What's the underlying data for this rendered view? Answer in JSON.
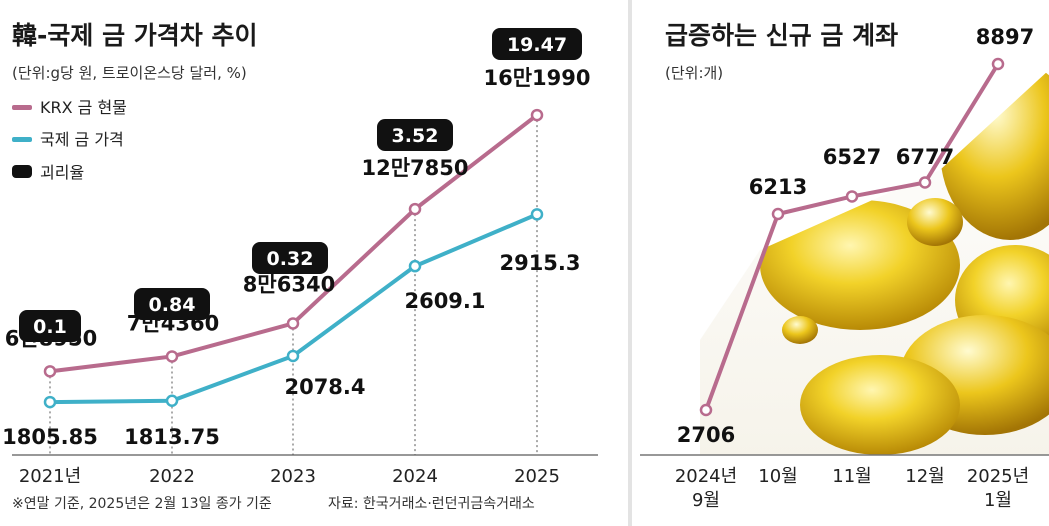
{
  "left_panel": {
    "title": "韓-국제 금 가격차 추이",
    "unit_note": "(단위:g당 원, 트로이온스당 달러, %)",
    "legend": [
      {
        "label": "KRX 금 현물",
        "color": "#b86b8d"
      },
      {
        "label": "국제 금 가격",
        "color": "#3fb0c8"
      },
      {
        "label": "괴리율",
        "color": "#111111"
      }
    ],
    "footnote": "※연말 기준, 2025년은 2월 13일 종가 기준",
    "source": "자료: 한국거래소·런던귀금속거래소"
  },
  "right_panel": {
    "title": "급증하는 신규 금 계좌",
    "unit_note": "(단위:개)"
  },
  "chart_data": [
    {
      "type": "line",
      "title": "韓-국제 금 가격차 추이",
      "categories": [
        "2021년",
        "2022",
        "2023",
        "2024",
        "2025"
      ],
      "series": [
        {
          "name": "KRX 금 현물",
          "values": [
            68950,
            74360,
            86340,
            127850,
            161990
          ],
          "labels": [
            "6만8950",
            "7만4360",
            "8만6340",
            "12만7850",
            "16만1990"
          ],
          "color": "#b86b8d"
        },
        {
          "name": "국제 금 가격",
          "values": [
            1805.85,
            1813.75,
            2078.4,
            2609.1,
            2915.3
          ],
          "labels": [
            "1805.85",
            "1813.75",
            "2078.4",
            "2609.1",
            "2915.3"
          ],
          "color": "#3fb0c8"
        },
        {
          "name": "괴리율",
          "values": [
            0.1,
            0.84,
            0.32,
            3.52,
            19.47
          ],
          "labels": [
            "0.1",
            "0.84",
            "0.32",
            "3.52",
            "19.47"
          ],
          "color": "#111111"
        }
      ]
    },
    {
      "type": "line",
      "title": "급증하는 신규 금 계좌",
      "categories": [
        "2024년 9월",
        "10월",
        "11월",
        "12월",
        "2025년 1월"
      ],
      "series": [
        {
          "name": "신규 금 계좌",
          "values": [
            2706,
            6213,
            6527,
            6777,
            8897
          ],
          "color": "#b86b8d"
        }
      ]
    }
  ]
}
